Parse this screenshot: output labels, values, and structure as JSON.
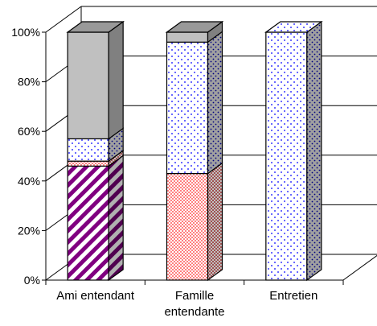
{
  "chart_data": {
    "type": "bar",
    "stacked": "percent",
    "three_d": true,
    "categories": [
      [
        "Ami entendant"
      ],
      [
        "Famille",
        "entendante"
      ],
      [
        "Entretien"
      ]
    ],
    "y_ticks": [
      "0%",
      "20%",
      "40%",
      "60%",
      "80%",
      "100%"
    ],
    "ylim": [
      0,
      100
    ],
    "grid": true,
    "legend": "none",
    "series": [
      {
        "values": [
          46,
          0,
          0
        ],
        "color": "#800080",
        "pattern": "diagonal-stripes"
      },
      {
        "values": [
          2,
          43,
          0
        ],
        "color": "#ff8080",
        "pattern": "checker"
      },
      {
        "values": [
          9,
          53,
          100
        ],
        "color": "#0000ff",
        "pattern": "dots"
      },
      {
        "values": [
          43,
          4,
          0
        ],
        "color": "#c0c0c0",
        "pattern": "solid"
      }
    ]
  }
}
